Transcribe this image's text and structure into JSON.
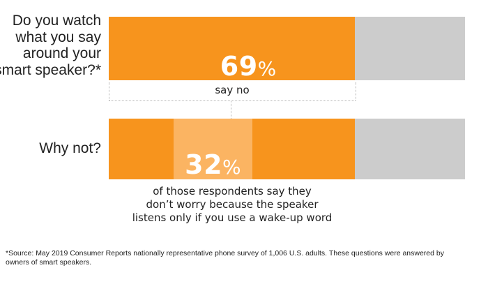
{
  "chart_data": [
    {
      "type": "bar",
      "question": "Do you watch what you say around your smart speaker?*",
      "question_lines": [
        "Do you watch",
        "what you say",
        "around your",
        "smart speaker?*"
      ],
      "value_number": "69",
      "value_sign": "%",
      "value": 69,
      "caption": "say no",
      "colors": {
        "main": "#f7941d",
        "rest": "#cccccc"
      }
    },
    {
      "type": "bar",
      "question": "Why not?",
      "value_number": "32",
      "value_sign": "%",
      "value": 32,
      "caption_lines": [
        "of those respondents say they",
        "don’t worry because the speaker",
        "listens only if you use a wake-up word"
      ],
      "colors": {
        "main": "#f7941d",
        "highlight": "#fbb462",
        "rest": "#cccccc"
      }
    }
  ],
  "footnote_lines": [
    "*Source: May 2019 Consumer Reports nationally representative phone survey of 1,006 U.S. adults. These questions were answered by",
    "owners of smart speakers."
  ]
}
